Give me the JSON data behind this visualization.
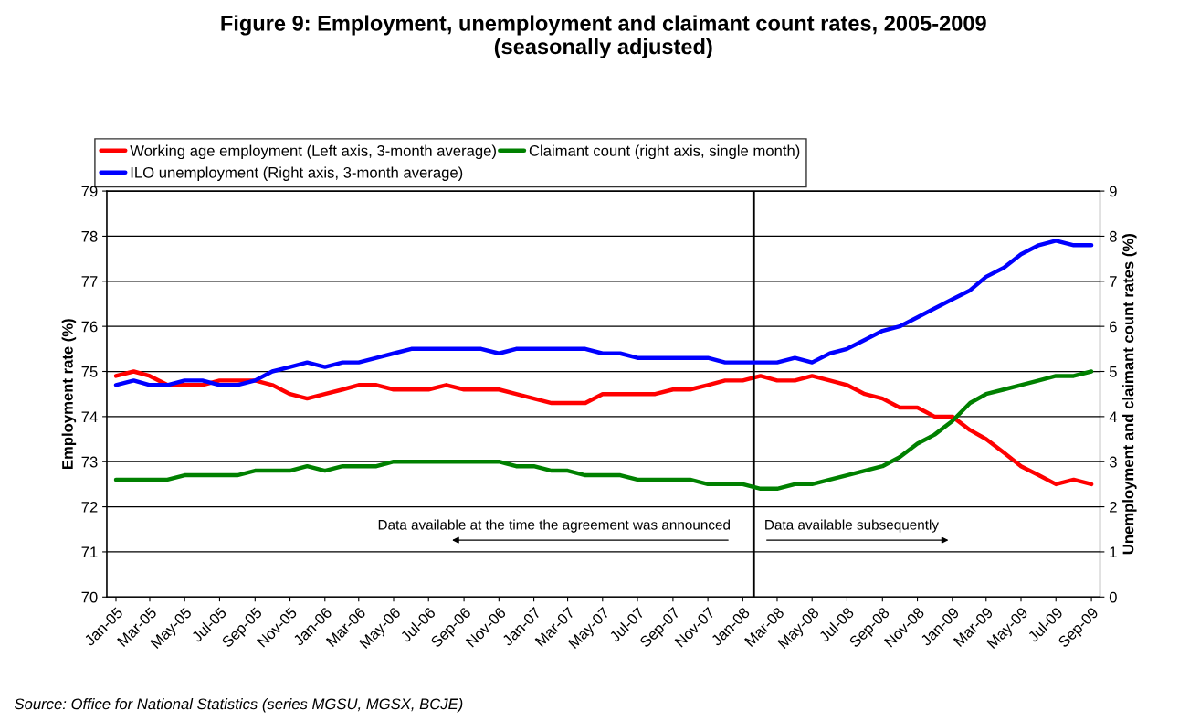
{
  "chart_data": {
    "type": "line",
    "title": "Figure 9: Employment, unemployment and claimant count rates, 2005-2009\n(seasonally adjusted)",
    "ylabel": "Employment rate (%)",
    "y2label": "Unemployment and claimant count rates (%)",
    "x": [
      "2005-01",
      "2005-02",
      "2005-03",
      "2005-04",
      "2005-05",
      "2005-06",
      "2005-07",
      "2005-08",
      "2005-09",
      "2005-10",
      "2005-11",
      "2005-12",
      "2006-01",
      "2006-02",
      "2006-03",
      "2006-04",
      "2006-05",
      "2006-06",
      "2006-07",
      "2006-08",
      "2006-09",
      "2006-10",
      "2006-11",
      "2006-12",
      "2007-01",
      "2007-02",
      "2007-03",
      "2007-04",
      "2007-05",
      "2007-06",
      "2007-07",
      "2007-08",
      "2007-09",
      "2007-10",
      "2007-11",
      "2007-12",
      "2008-01",
      "2008-02",
      "2008-03",
      "2008-04",
      "2008-05",
      "2008-06",
      "2008-07",
      "2008-08",
      "2008-09",
      "2008-10",
      "2008-11",
      "2008-12",
      "2009-01",
      "2009-02",
      "2009-03",
      "2009-04",
      "2009-05",
      "2009-06",
      "2009-07",
      "2009-08",
      "2009-09"
    ],
    "series": [
      {
        "name": "Working age employment (Left axis, 3-month average)",
        "color": "#ff0000",
        "axis": "y",
        "values": [
          74.9,
          75.0,
          74.9,
          74.7,
          74.7,
          74.7,
          74.8,
          74.8,
          74.8,
          74.7,
          74.5,
          74.4,
          74.5,
          74.6,
          74.7,
          74.7,
          74.6,
          74.6,
          74.6,
          74.7,
          74.6,
          74.6,
          74.6,
          74.5,
          74.4,
          74.3,
          74.3,
          74.3,
          74.5,
          74.5,
          74.5,
          74.5,
          74.6,
          74.6,
          74.7,
          74.8,
          74.8,
          74.9,
          74.8,
          74.8,
          74.9,
          74.8,
          74.7,
          74.5,
          74.4,
          74.2,
          74.2,
          74.0,
          74.0,
          73.7,
          73.5,
          73.2,
          72.9,
          72.7,
          72.5,
          72.6,
          72.5
        ]
      },
      {
        "name": "ILO unemployment (Right axis, 3-month average)",
        "color": "#0000ff",
        "axis": "y2",
        "values": [
          4.7,
          4.8,
          4.7,
          4.7,
          4.8,
          4.8,
          4.7,
          4.7,
          4.8,
          5.0,
          5.1,
          5.2,
          5.1,
          5.2,
          5.2,
          5.3,
          5.4,
          5.5,
          5.5,
          5.5,
          5.5,
          5.5,
          5.4,
          5.5,
          5.5,
          5.5,
          5.5,
          5.5,
          5.4,
          5.4,
          5.3,
          5.3,
          5.3,
          5.3,
          5.3,
          5.2,
          5.2,
          5.2,
          5.2,
          5.3,
          5.2,
          5.4,
          5.5,
          5.7,
          5.9,
          6.0,
          6.2,
          6.4,
          6.6,
          6.8,
          7.1,
          7.3,
          7.6,
          7.8,
          7.9,
          7.8,
          7.8
        ]
      },
      {
        "name": "Claimant count (right axis, single month)",
        "color": "#008000",
        "axis": "y2",
        "values": [
          2.6,
          2.6,
          2.6,
          2.6,
          2.7,
          2.7,
          2.7,
          2.7,
          2.8,
          2.8,
          2.8,
          2.9,
          2.8,
          2.9,
          2.9,
          2.9,
          3.0,
          3.0,
          3.0,
          3.0,
          3.0,
          3.0,
          3.0,
          2.9,
          2.9,
          2.8,
          2.8,
          2.7,
          2.7,
          2.7,
          2.6,
          2.6,
          2.6,
          2.6,
          2.5,
          2.5,
          2.5,
          2.4,
          2.4,
          2.5,
          2.5,
          2.6,
          2.7,
          2.8,
          2.9,
          3.1,
          3.4,
          3.6,
          3.9,
          4.3,
          4.5,
          4.6,
          4.7,
          4.8,
          4.9,
          4.9,
          5.0
        ]
      }
    ],
    "xlim": [
      "2004-12-16",
      "2009-09-16"
    ],
    "xticks": [
      {
        "value": "2005-01",
        "label": "Jan-05"
      },
      {
        "value": "2005-03",
        "label": "Mar-05"
      },
      {
        "value": "2005-05",
        "label": "May-05"
      },
      {
        "value": "2005-07",
        "label": "Jul-05"
      },
      {
        "value": "2005-09",
        "label": "Sep-05"
      },
      {
        "value": "2005-11",
        "label": "Nov-05"
      },
      {
        "value": "2006-01",
        "label": "Jan-06"
      },
      {
        "value": "2006-03",
        "label": "Mar-06"
      },
      {
        "value": "2006-05",
        "label": "May-06"
      },
      {
        "value": "2006-07",
        "label": "Jul-06"
      },
      {
        "value": "2006-09",
        "label": "Sep-06"
      },
      {
        "value": "2006-11",
        "label": "Nov-06"
      },
      {
        "value": "2007-01",
        "label": "Jan-07"
      },
      {
        "value": "2007-03",
        "label": "Mar-07"
      },
      {
        "value": "2007-05",
        "label": "May-07"
      },
      {
        "value": "2007-07",
        "label": "Jul-07"
      },
      {
        "value": "2007-09",
        "label": "Sep-07"
      },
      {
        "value": "2007-11",
        "label": "Nov-07"
      },
      {
        "value": "2008-01",
        "label": "Jan-08"
      },
      {
        "value": "2008-03",
        "label": "Mar-08"
      },
      {
        "value": "2008-05",
        "label": "May-08"
      },
      {
        "value": "2008-07",
        "label": "Jul-08"
      },
      {
        "value": "2008-09",
        "label": "Sep-08"
      },
      {
        "value": "2008-11",
        "label": "Nov-08"
      },
      {
        "value": "2009-01",
        "label": "Jan-09"
      },
      {
        "value": "2009-03",
        "label": "Mar-09"
      },
      {
        "value": "2009-05",
        "label": "May-09"
      },
      {
        "value": "2009-07",
        "label": "Jul-09"
      },
      {
        "value": "2009-09",
        "label": "Sep-09"
      }
    ],
    "ylim": [
      70,
      79
    ],
    "yticks": [
      70,
      71,
      72,
      73,
      74,
      75,
      76,
      77,
      78,
      79
    ],
    "y2lim": [
      0,
      9
    ],
    "y2ticks": [
      0,
      1,
      2,
      3,
      4,
      5,
      6,
      7,
      8,
      9
    ],
    "grid": "y",
    "legend": "top",
    "marker": "none",
    "line_style": "solid",
    "ref_lines": [
      {
        "axis": "x",
        "value": "2008-01-20",
        "color": "#000000",
        "line_style": "solid"
      }
    ],
    "annotations": [
      "Data available at the time the agreement was announced",
      "Data available subsequently",
      "Source: Office for National Statistics (series MGSU, MGSX, BCJE)"
    ]
  }
}
